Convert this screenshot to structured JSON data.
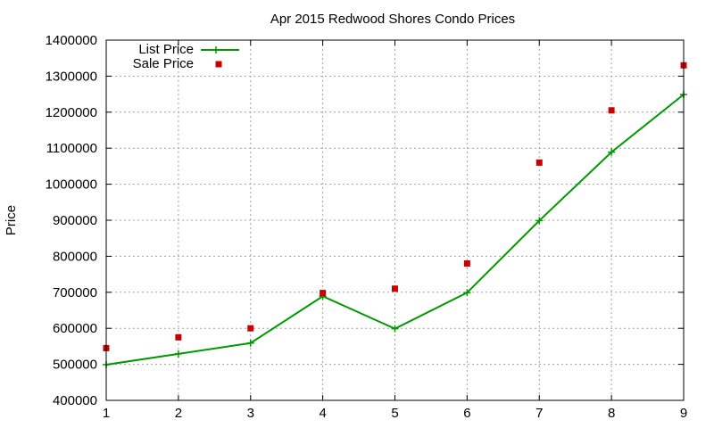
{
  "chart_data": {
    "type": "line",
    "title": "Apr 2015 Redwood Shores Condo Prices",
    "xlabel": "",
    "ylabel": "Price",
    "x": [
      1,
      2,
      3,
      4,
      5,
      6,
      7,
      8,
      9
    ],
    "xlim": [
      1,
      9
    ],
    "ylim": [
      400000,
      1400000
    ],
    "yticks": [
      400000,
      500000,
      600000,
      700000,
      800000,
      900000,
      1000000,
      1100000,
      1200000,
      1300000,
      1400000
    ],
    "xticks": [
      1,
      2,
      3,
      4,
      5,
      6,
      7,
      8,
      9
    ],
    "grid": true,
    "legend_position": "top-left",
    "series": [
      {
        "name": "List Price",
        "style": "line-with-plus-markers",
        "color": "#009900",
        "values": [
          499000,
          529000,
          559000,
          689000,
          599000,
          699000,
          899000,
          1089000,
          1249000
        ]
      },
      {
        "name": "Sale Price",
        "style": "square-points",
        "color": "#cc0000",
        "values": [
          545000,
          575000,
          600000,
          698000,
          710000,
          780000,
          1060000,
          1205000,
          1330000
        ]
      }
    ]
  }
}
